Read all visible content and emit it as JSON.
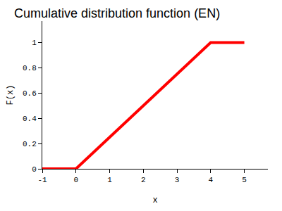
{
  "chart_data": {
    "type": "line",
    "title": "Cumulative distribution function (EN)",
    "x_label": "x",
    "y_label": "F(x)",
    "x": [
      -1,
      0,
      4,
      5
    ],
    "values": [
      0,
      0,
      1,
      1
    ],
    "color": "#ff0000",
    "xlim": [
      -1,
      5.7
    ],
    "xticks": [
      -1,
      0,
      1,
      2,
      3,
      4,
      5
    ],
    "ylim": [
      0,
      1.17
    ],
    "yticks": [
      0,
      0.2,
      0.4,
      0.6,
      0.8,
      1
    ],
    "grid": false
  }
}
